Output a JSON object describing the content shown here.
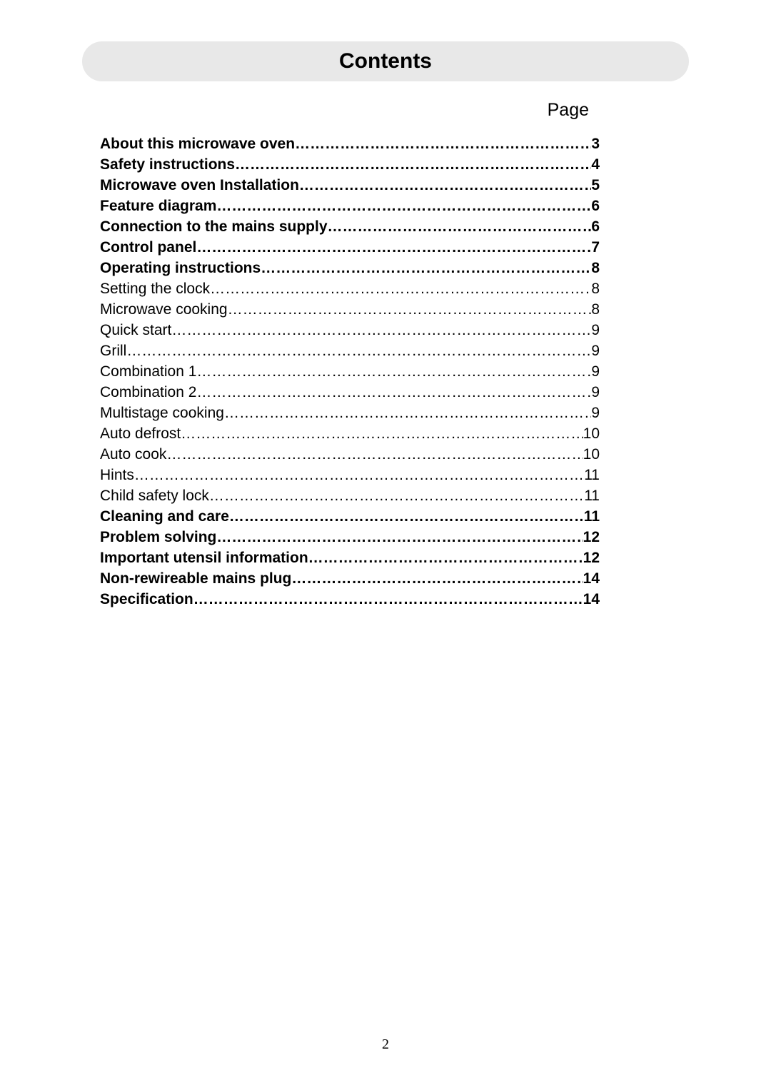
{
  "header": {
    "title": "Contents",
    "page_label": "Page"
  },
  "toc": {
    "entries": [
      {
        "label": "About this microwave oven ",
        "page": "3",
        "bold": true
      },
      {
        "label": "Safety instructions",
        "page": "4",
        "bold": true
      },
      {
        "label": "Microwave oven Installation",
        "page": "5",
        "bold": true
      },
      {
        "label": " Feature diagram",
        "page": "6",
        "bold": true
      },
      {
        "label": "Connection to the mains supply",
        "page": "6",
        "bold": true
      },
      {
        "label": "Control panel",
        "page": "7",
        "bold": true
      },
      {
        "label": "Operating instructions",
        "page": "8",
        "bold": true
      },
      {
        "label": "Setting the clock",
        "page": "8",
        "bold": false
      },
      {
        "label": " Microwave cooking",
        "page": "8",
        "bold": false
      },
      {
        "label": " Quick start ",
        "page": "9",
        "bold": false
      },
      {
        "label": " Grill",
        "page": "9",
        "bold": false
      },
      {
        "label": " Combination 1",
        "page": "9",
        "bold": false
      },
      {
        "label": " Combination 2",
        "page": "9",
        "bold": false
      },
      {
        "label": " Multistage cooking",
        "page": "9",
        "bold": false
      },
      {
        "label": " Auto defrost",
        "page": "10",
        "bold": false
      },
      {
        "label": " Auto cook",
        "page": "10",
        "bold": false
      },
      {
        "label": " Hints",
        "page": "11",
        "bold": false
      },
      {
        "label": " Child safety lock",
        "page": "11",
        "bold": false
      },
      {
        "label": "Cleaning and care",
        "page": "11",
        "bold": true
      },
      {
        "label": "Problem solving",
        "page": "12",
        "bold": true
      },
      {
        "label": "Important utensil information",
        "page": "12",
        "bold": true
      },
      {
        "label": "Non-rewireable mains plug",
        "page": "14",
        "bold": true
      },
      {
        "label": "Specification",
        "page": "14",
        "bold": true
      }
    ]
  },
  "footer": {
    "page_number": "2"
  },
  "styling": {
    "background_color": "#ffffff",
    "header_pill_bg": "#e8e8e8",
    "header_pill_radius": 28,
    "text_color": "#000000",
    "title_fontsize": 30,
    "page_label_fontsize": 25,
    "toc_fontsize": 21,
    "page_number_fontsize": 20,
    "page_number_font": "Times New Roman"
  }
}
